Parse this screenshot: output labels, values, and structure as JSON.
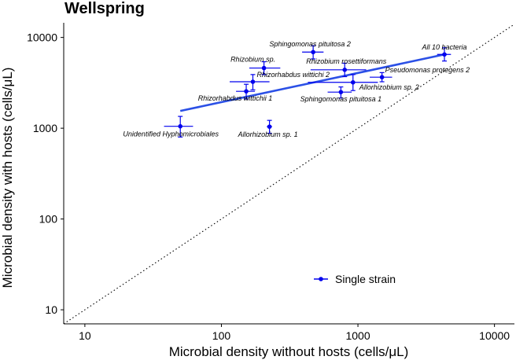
{
  "chart_data": {
    "type": "scatter",
    "title": "Wellspring",
    "xlabel": "Microbial density without hosts (cells/μL)",
    "ylabel": "Microbial density with hosts (cells/μL)",
    "x_scale": "log",
    "y_scale": "log",
    "xlim": [
      7,
      14000
    ],
    "ylim": [
      7,
      14500
    ],
    "x_ticks": [
      10,
      100,
      1000,
      10000
    ],
    "x_tick_labels": [
      "10",
      "100",
      "1000",
      "10000"
    ],
    "y_ticks": [
      10,
      100,
      1000,
      10000
    ],
    "y_tick_labels": [
      "10",
      "100",
      "1000",
      "10000"
    ],
    "grid": false,
    "legend": {
      "position": "bottom-center",
      "entries": [
        "Single strain"
      ]
    },
    "reference_line": {
      "style": "dotted",
      "description": "y = x"
    },
    "fit_line": {
      "x": [
        50,
        4300
      ],
      "y": [
        1550,
        6500
      ]
    },
    "series": [
      {
        "name": "Single strain",
        "color": "#0000ee",
        "points": [
          {
            "label": "All 10 bacteria",
            "x": 4300,
            "y": 6500,
            "xerr": [
              3800,
              4800
            ],
            "yerr": [
              5500,
              7700
            ]
          },
          {
            "label": "Sphingomonas pituitosa 2",
            "x": 470,
            "y": 6900,
            "xerr": [
              390,
              560
            ],
            "yerr": [
              5800,
              8100
            ]
          },
          {
            "label": "Rhizobium sp.",
            "x": 205,
            "y": 4600,
            "xerr": [
              160,
              270
            ],
            "yerr": [
              3900,
              5400
            ]
          },
          {
            "label": "Rhizobium rosettiformans",
            "x": 800,
            "y": 4400,
            "xerr": [
              450,
              1150
            ],
            "yerr": [
              3700,
              5200
            ]
          },
          {
            "label": "Pseudomonas protegens 2",
            "x": 1500,
            "y": 3650,
            "xerr": [
              1220,
              1780
            ],
            "yerr": [
              3250,
              4100
            ]
          },
          {
            "label": "Rhizorhabdus wittichi 2",
            "x": 170,
            "y": 3250,
            "xerr": [
              115,
              225
            ],
            "yerr": [
              2650,
              3900
            ]
          },
          {
            "label": "Allorhizobium sp. 2",
            "x": 920,
            "y": 3200,
            "xerr": [
              430,
              1400
            ],
            "yerr": [
              2600,
              3900
            ]
          },
          {
            "label": "Sphingomonas pituitosa 1",
            "x": 750,
            "y": 2500,
            "xerr": [
              600,
              900
            ],
            "yerr": [
              2150,
              2850
            ]
          },
          {
            "label": "Rhizorhabdus wittichii 1",
            "x": 152,
            "y": 2550,
            "xerr": [
              128,
              176
            ],
            "yerr": [
              2100,
              3050
            ]
          },
          {
            "label": "Unidentified Hyphomicrobiales",
            "x": 50,
            "y": 1050,
            "xerr": [
              38,
              62
            ],
            "yerr": [
              800,
              1350
            ]
          },
          {
            "label": "Allorhizobium sp. 1",
            "x": 225,
            "y": 1040,
            "xerr": [
              215,
              235
            ],
            "yerr": [
              880,
              1220
            ]
          }
        ]
      }
    ]
  }
}
